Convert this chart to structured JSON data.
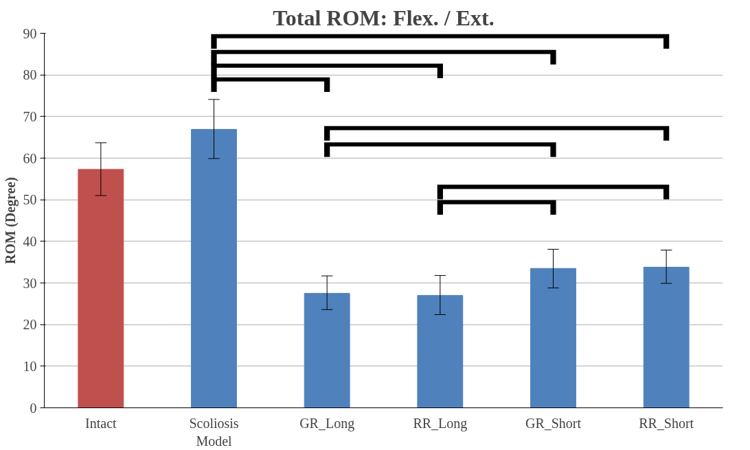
{
  "chart_data": {
    "type": "bar",
    "title": "Total ROM: Flex. / Ext.",
    "ylabel": "ROM (Degree)",
    "categories": [
      "Intact",
      "Scoliosis\nModel",
      "GR_Long",
      "RR_Long",
      "GR_Short",
      "RR_Short"
    ],
    "values": [
      57.3,
      66.9,
      27.5,
      27.0,
      33.5,
      33.8
    ],
    "colors": [
      "#c0504d",
      "#4f81bd",
      "#4f81bd",
      "#4f81bd",
      "#4f81bd",
      "#4f81bd"
    ],
    "errors": [
      [
        51.0,
        63.7
      ],
      [
        59.9,
        74.1
      ],
      [
        23.6,
        31.7
      ],
      [
        22.4,
        31.8
      ],
      [
        28.8,
        38.1
      ],
      [
        29.9,
        37.9
      ]
    ],
    "ylim": [
      0,
      90
    ],
    "yticks": [
      0,
      10,
      20,
      30,
      40,
      50,
      60,
      70,
      80,
      90
    ],
    "grid": "y"
  }
}
